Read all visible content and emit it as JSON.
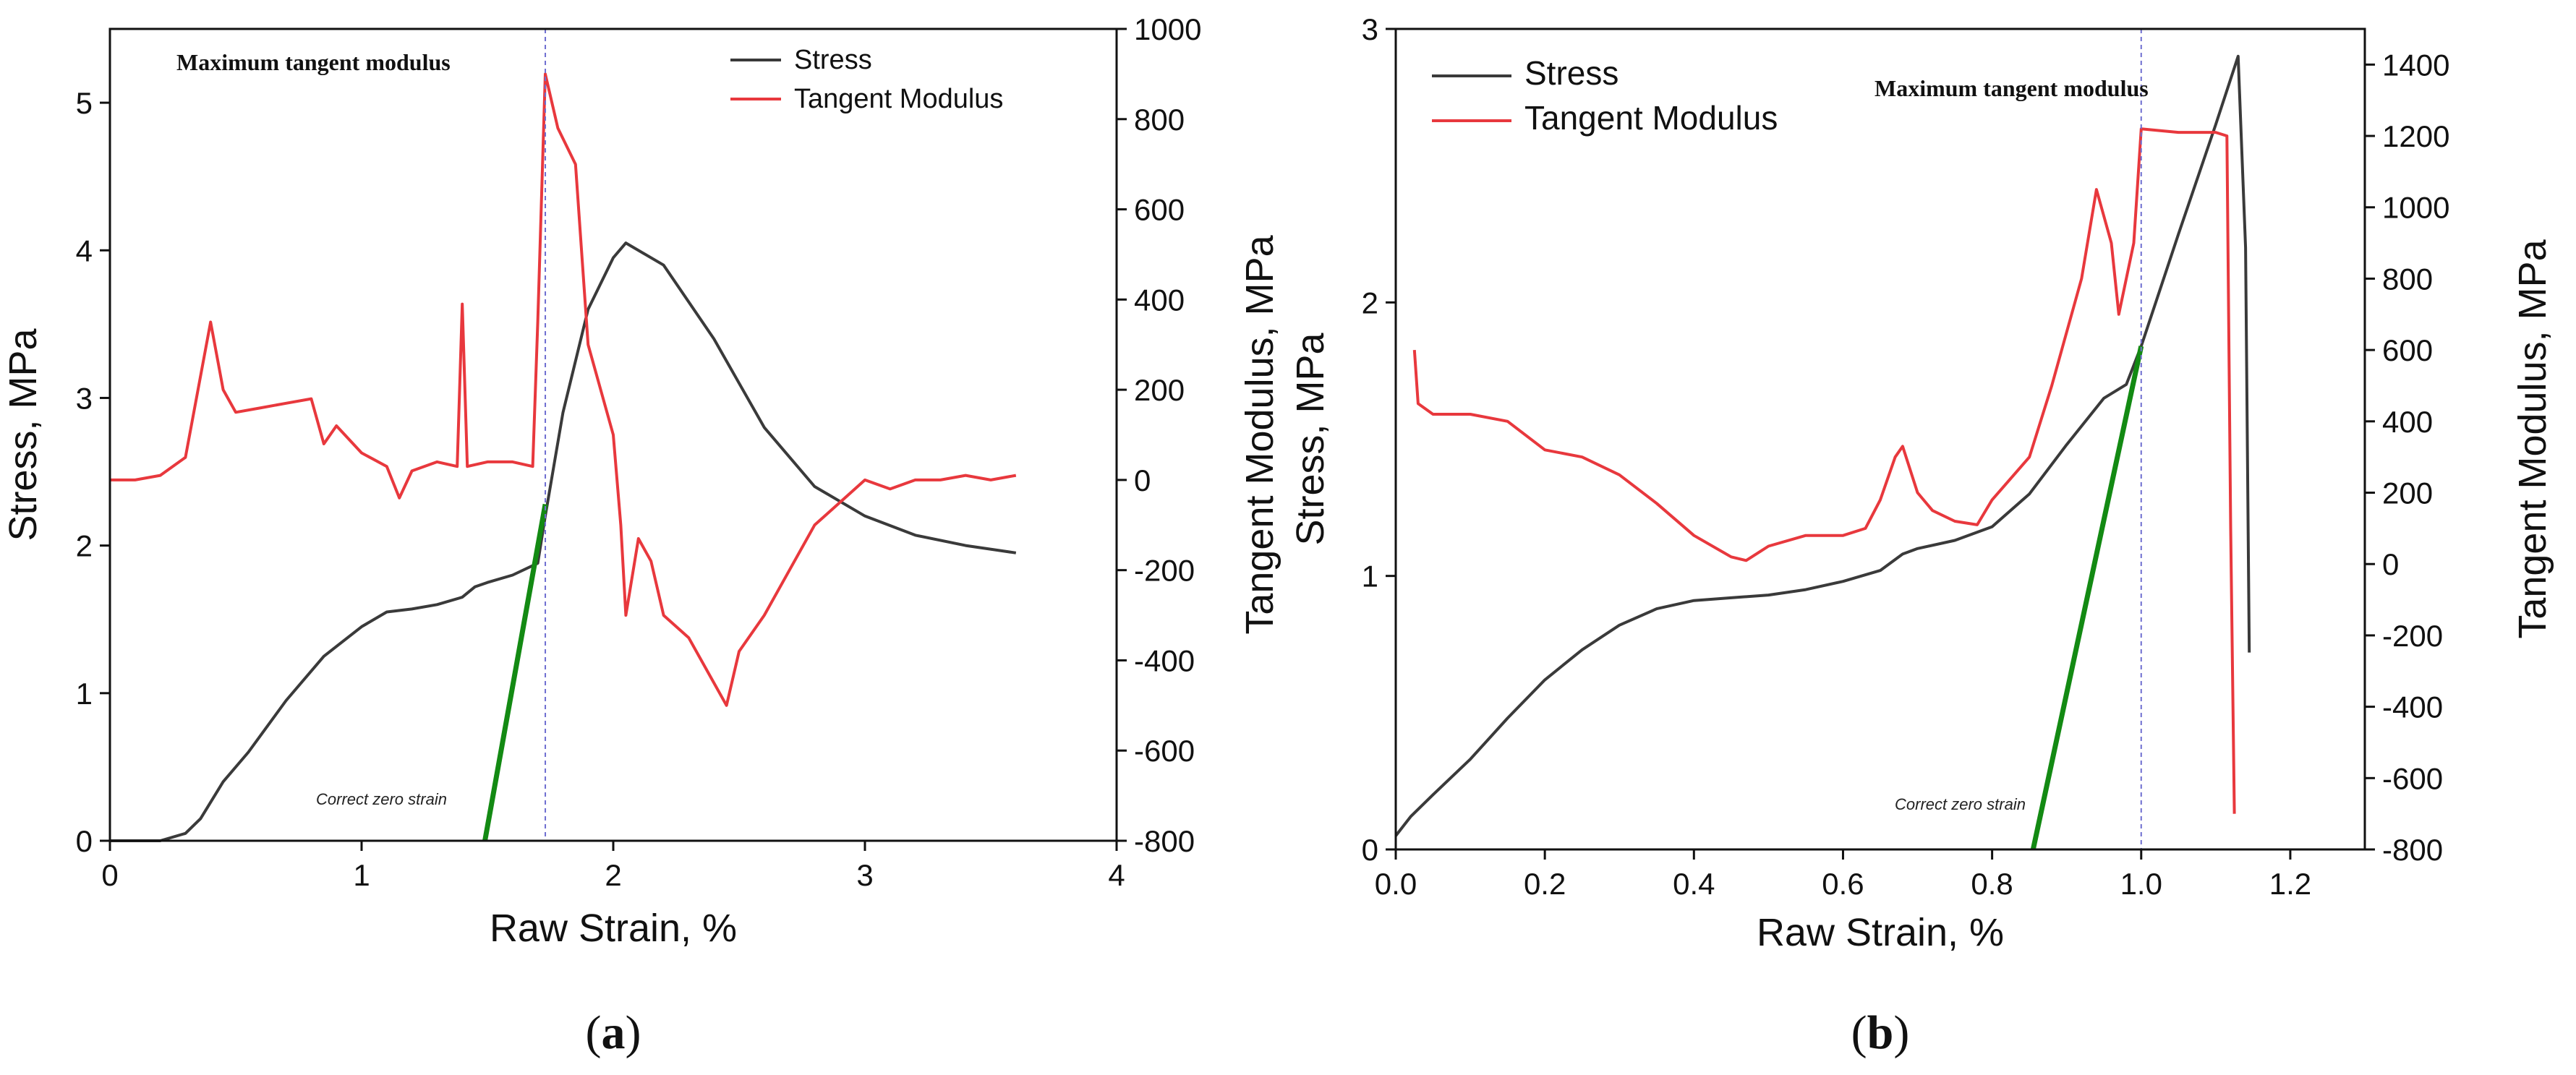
{
  "chart_data": [
    {
      "type": "line",
      "panel": "(a)",
      "panel_letter": "a",
      "xlabel": "Raw Strain, %",
      "ylabel": "Stress, MPa",
      "y2label": "Tangent Modulus, MPa",
      "xlim": [
        0,
        4
      ],
      "ylim": [
        0,
        5.5
      ],
      "y2lim": [
        -800,
        1000
      ],
      "xticks": [
        "0",
        "1",
        "2",
        "3",
        "4"
      ],
      "yticks": [
        "0",
        "1",
        "2",
        "3",
        "4",
        "5"
      ],
      "y2ticks": [
        "-800",
        "-600",
        "-400",
        "-200",
        "0",
        "200",
        "400",
        "600",
        "800",
        "1000"
      ],
      "legend_position": "top-right",
      "legend": [
        "Stress",
        "Tangent Modulus"
      ],
      "annotations": {
        "max_label": "Maximum tangent modulus",
        "zero_label": "Correct zero strain"
      },
      "max_modulus_strain": 1.73,
      "zero_strain_line": {
        "x": [
          1.49,
          1.73
        ],
        "y": [
          0,
          2.28
        ]
      },
      "colors": {
        "stress": "#3a3a3a",
        "modulus": "#e8383d",
        "tangent_line": "#138a13",
        "marker": "#6e6ed0"
      },
      "series": [
        {
          "name": "Stress",
          "axis": "left",
          "x": [
            0,
            0.2,
            0.3,
            0.36,
            0.45,
            0.55,
            0.7,
            0.85,
            1.0,
            1.1,
            1.2,
            1.3,
            1.4,
            1.45,
            1.5,
            1.6,
            1.7,
            1.73,
            1.8,
            1.9,
            2.0,
            2.05,
            2.2,
            2.4,
            2.6,
            2.8,
            3.0,
            3.2,
            3.4,
            3.6
          ],
          "y": [
            0,
            0,
            0.05,
            0.15,
            0.4,
            0.6,
            0.95,
            1.25,
            1.45,
            1.55,
            1.57,
            1.6,
            1.65,
            1.72,
            1.75,
            1.8,
            1.88,
            2.2,
            2.9,
            3.6,
            3.95,
            4.05,
            3.9,
            3.4,
            2.8,
            2.4,
            2.2,
            2.07,
            2.0,
            1.95
          ]
        },
        {
          "name": "Tangent Modulus",
          "axis": "right",
          "x": [
            0,
            0.1,
            0.2,
            0.3,
            0.35,
            0.4,
            0.45,
            0.5,
            0.6,
            0.7,
            0.8,
            0.85,
            0.9,
            1.0,
            1.1,
            1.15,
            1.2,
            1.3,
            1.38,
            1.4,
            1.42,
            1.5,
            1.6,
            1.68,
            1.7,
            1.73,
            1.78,
            1.85,
            1.9,
            1.95,
            2.0,
            2.03,
            2.05,
            2.1,
            2.15,
            2.2,
            2.3,
            2.4,
            2.45,
            2.5,
            2.6,
            2.7,
            2.8,
            2.9,
            3.0,
            3.1,
            3.2,
            3.3,
            3.4,
            3.5,
            3.6
          ],
          "y": [
            0,
            0,
            10,
            50,
            200,
            350,
            200,
            150,
            160,
            170,
            180,
            80,
            120,
            60,
            30,
            -40,
            20,
            40,
            30,
            390,
            30,
            40,
            40,
            30,
            350,
            900,
            780,
            700,
            300,
            200,
            100,
            -100,
            -300,
            -130,
            -180,
            -300,
            -350,
            -450,
            -500,
            -380,
            -300,
            -200,
            -100,
            -50,
            0,
            -20,
            0,
            0,
            10,
            0,
            10
          ]
        }
      ]
    },
    {
      "type": "line",
      "panel": "(b)",
      "panel_letter": "b",
      "xlabel": "Raw Strain, %",
      "ylabel": "Stress, MPa",
      "y2label": "Tangent Modulus, MPa",
      "xlim": [
        0,
        1.3
      ],
      "ylim": [
        0,
        3
      ],
      "y2lim": [
        -800,
        1500
      ],
      "xticks": [
        "0.0",
        "0.2",
        "0.4",
        "0.6",
        "0.8",
        "1.0",
        "1.2"
      ],
      "yticks": [
        "0",
        "1",
        "2",
        "3"
      ],
      "y2ticks": [
        "-800",
        "-600",
        "-400",
        "-200",
        "0",
        "200",
        "400",
        "600",
        "800",
        "1000",
        "1200",
        "1400"
      ],
      "legend_position": "top-left",
      "legend": [
        "Stress",
        "Tangent Modulus"
      ],
      "annotations": {
        "max_label": "Maximum tangent modulus",
        "zero_label": "Correct zero strain"
      },
      "max_modulus_strain": 1.0,
      "zero_strain_line": {
        "x": [
          0.855,
          1.0
        ],
        "y": [
          0,
          1.84
        ]
      },
      "colors": {
        "stress": "#3a3a3a",
        "modulus": "#e8383d",
        "tangent_line": "#138a13",
        "marker": "#6e6ed0"
      },
      "series": [
        {
          "name": "Stress",
          "axis": "left",
          "x": [
            0,
            0.02,
            0.05,
            0.1,
            0.15,
            0.2,
            0.25,
            0.3,
            0.35,
            0.4,
            0.45,
            0.5,
            0.55,
            0.6,
            0.65,
            0.68,
            0.7,
            0.75,
            0.8,
            0.85,
            0.9,
            0.95,
            0.98,
            1.0,
            1.05,
            1.1,
            1.13,
            1.14,
            1.145
          ],
          "y": [
            0.05,
            0.12,
            0.2,
            0.33,
            0.48,
            0.62,
            0.73,
            0.82,
            0.88,
            0.91,
            0.92,
            0.93,
            0.95,
            0.98,
            1.02,
            1.08,
            1.1,
            1.13,
            1.18,
            1.3,
            1.48,
            1.65,
            1.7,
            1.84,
            2.25,
            2.65,
            2.9,
            2.2,
            0.72
          ]
        },
        {
          "name": "Tangent Modulus",
          "axis": "right",
          "x": [
            0.025,
            0.03,
            0.05,
            0.1,
            0.15,
            0.2,
            0.25,
            0.3,
            0.35,
            0.4,
            0.45,
            0.47,
            0.5,
            0.55,
            0.6,
            0.63,
            0.65,
            0.67,
            0.68,
            0.7,
            0.72,
            0.75,
            0.78,
            0.8,
            0.85,
            0.88,
            0.92,
            0.94,
            0.96,
            0.97,
            0.99,
            1.0,
            1.05,
            1.1,
            1.115,
            1.12,
            1.125
          ],
          "y": [
            600,
            450,
            420,
            420,
            400,
            320,
            300,
            250,
            170,
            80,
            20,
            10,
            50,
            80,
            80,
            100,
            180,
            300,
            330,
            200,
            150,
            120,
            110,
            180,
            300,
            500,
            800,
            1050,
            900,
            700,
            900,
            1220,
            1210,
            1210,
            1200,
            100,
            -700
          ]
        }
      ]
    }
  ]
}
